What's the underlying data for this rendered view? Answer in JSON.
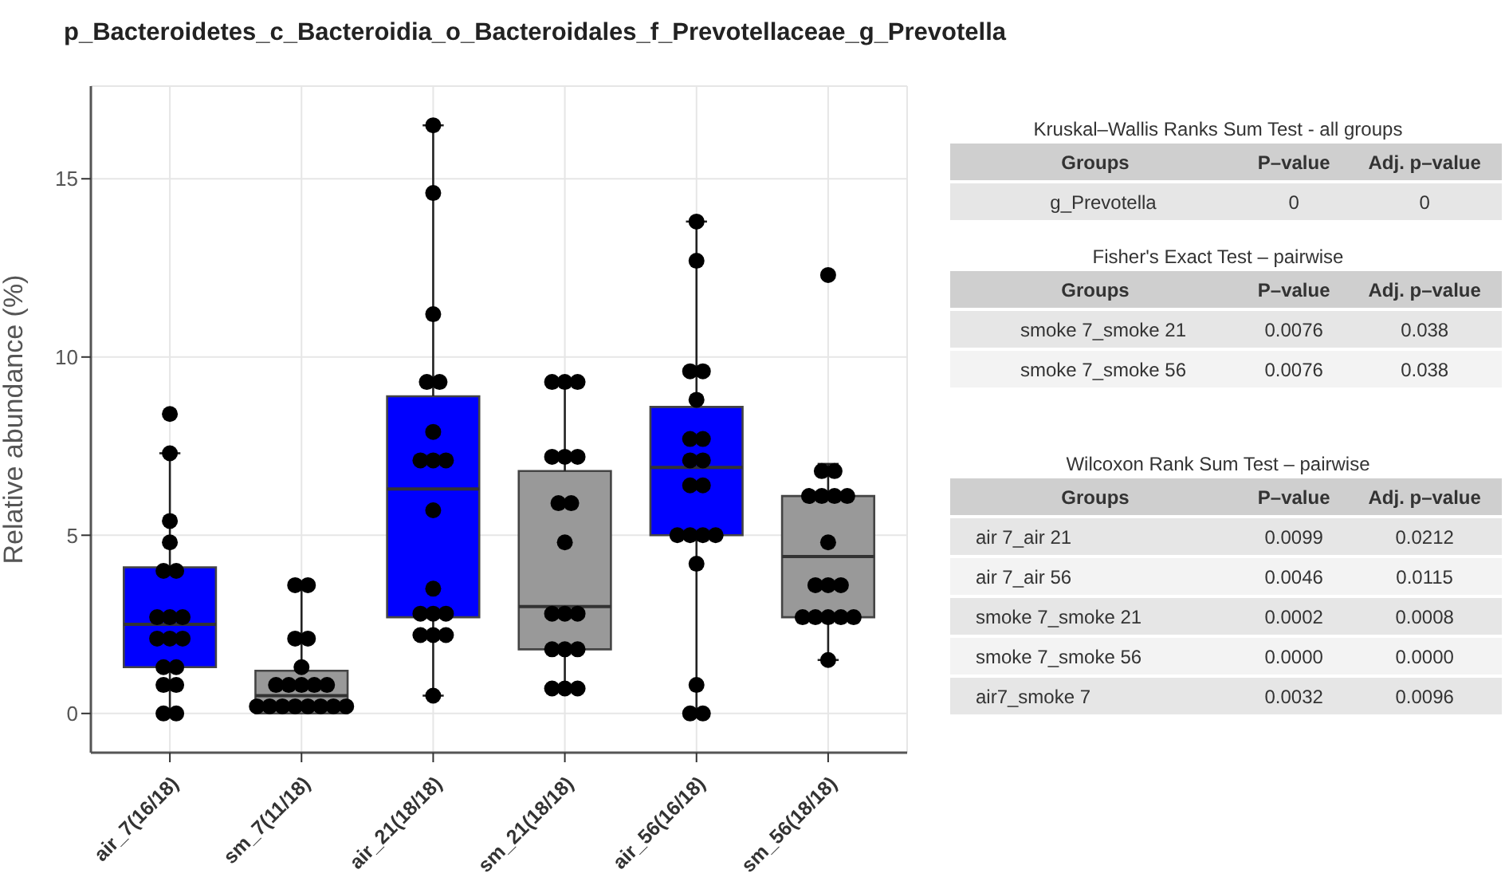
{
  "chart_data": [
    {
      "type": "box",
      "title": "p_Bacteroidetes_c_Bacteroidia_o_Bacteroidales_f_Prevotellaceae_g_Prevotella",
      "ylabel": "Relative abundance (%)",
      "categories": [
        "air_7(16/18)",
        "sm_7(11/18)",
        "air_21(18/18)",
        "sm_21(18/18)",
        "air_56(16/18)",
        "sm_56(18/18)"
      ],
      "colors": [
        "#0000ff",
        "#999999",
        "#0000ff",
        "#999999",
        "#0000ff",
        "#999999"
      ],
      "boxes": [
        {
          "low": 0,
          "q1": 1.3,
          "median": 2.5,
          "q3": 4.1,
          "high": 7.3
        },
        {
          "low": 0,
          "q1": 0,
          "median": 0.5,
          "q3": 1.2,
          "high": 3.6
        },
        {
          "low": 0.5,
          "q1": 2.7,
          "median": 6.3,
          "q3": 8.9,
          "high": 16.5
        },
        {
          "low": 0.7,
          "q1": 1.8,
          "median": 3.0,
          "q3": 6.8,
          "high": 9.3
        },
        {
          "low": 0,
          "q1": 5.0,
          "median": 6.9,
          "q3": 8.6,
          "high": 13.8
        },
        {
          "low": 1.5,
          "q1": 2.7,
          "median": 4.4,
          "q3": 6.1,
          "high": 7.0
        }
      ],
      "series": [
        {
          "type": "scatter",
          "color": "#000000",
          "x": [
            "air_7(16/18)",
            "air_7(16/18)",
            "air_7(16/18)",
            "air_7(16/18)",
            "air_7(16/18)",
            "air_7(16/18)",
            "air_7(16/18)",
            "air_7(16/18)",
            "air_7(16/18)",
            "air_7(16/18)",
            "air_7(16/18)",
            "air_7(16/18)",
            "air_7(16/18)",
            "air_7(16/18)",
            "air_7(16/18)",
            "air_7(16/18)",
            "air_7(16/18)",
            "air_7(16/18)",
            "sm_7(11/18)",
            "sm_7(11/18)",
            "sm_7(11/18)",
            "sm_7(11/18)",
            "sm_7(11/18)",
            "sm_7(11/18)",
            "sm_7(11/18)",
            "sm_7(11/18)",
            "sm_7(11/18)",
            "sm_7(11/18)",
            "sm_7(11/18)",
            "sm_7(11/18)",
            "sm_7(11/18)",
            "sm_7(11/18)",
            "sm_7(11/18)",
            "sm_7(11/18)",
            "sm_7(11/18)",
            "sm_7(11/18)",
            "air_21(18/18)",
            "air_21(18/18)",
            "air_21(18/18)",
            "air_21(18/18)",
            "air_21(18/18)",
            "air_21(18/18)",
            "air_21(18/18)",
            "air_21(18/18)",
            "air_21(18/18)",
            "air_21(18/18)",
            "air_21(18/18)",
            "air_21(18/18)",
            "air_21(18/18)",
            "air_21(18/18)",
            "air_21(18/18)",
            "air_21(18/18)",
            "air_21(18/18)",
            "air_21(18/18)",
            "sm_21(18/18)",
            "sm_21(18/18)",
            "sm_21(18/18)",
            "sm_21(18/18)",
            "sm_21(18/18)",
            "sm_21(18/18)",
            "sm_21(18/18)",
            "sm_21(18/18)",
            "sm_21(18/18)",
            "sm_21(18/18)",
            "sm_21(18/18)",
            "sm_21(18/18)",
            "sm_21(18/18)",
            "sm_21(18/18)",
            "sm_21(18/18)",
            "sm_21(18/18)",
            "sm_21(18/18)",
            "sm_21(18/18)",
            "air_56(16/18)",
            "air_56(16/18)",
            "air_56(16/18)",
            "air_56(16/18)",
            "air_56(16/18)",
            "air_56(16/18)",
            "air_56(16/18)",
            "air_56(16/18)",
            "air_56(16/18)",
            "air_56(16/18)",
            "air_56(16/18)",
            "air_56(16/18)",
            "air_56(16/18)",
            "air_56(16/18)",
            "air_56(16/18)",
            "air_56(16/18)",
            "air_56(16/18)",
            "air_56(16/18)",
            "air_56(16/18)",
            "sm_56(18/18)",
            "sm_56(18/18)",
            "sm_56(18/18)",
            "sm_56(18/18)",
            "sm_56(18/18)",
            "sm_56(18/18)",
            "sm_56(18/18)",
            "sm_56(18/18)",
            "sm_56(18/18)",
            "sm_56(18/18)",
            "sm_56(18/18)",
            "sm_56(18/18)",
            "sm_56(18/18)",
            "sm_56(18/18)",
            "sm_56(18/18)",
            "sm_56(18/18)",
            "sm_56(18/18)"
          ],
          "values": [
            8.4,
            7.3,
            5.4,
            4.8,
            4.0,
            4.0,
            2.7,
            2.7,
            2.7,
            2.1,
            2.1,
            2.1,
            1.3,
            1.3,
            0.8,
            0.8,
            0,
            0,
            3.6,
            3.6,
            2.1,
            2.1,
            1.3,
            0.8,
            0.8,
            0.8,
            0.8,
            0.8,
            0.2,
            0.2,
            0.2,
            0.2,
            0.2,
            0.2,
            0.2,
            0.2,
            16.5,
            14.6,
            11.2,
            9.3,
            9.3,
            7.9,
            7.1,
            7.1,
            7.1,
            5.7,
            3.5,
            2.8,
            2.8,
            2.8,
            2.2,
            2.2,
            2.2,
            0.5,
            9.3,
            9.3,
            9.3,
            7.2,
            7.2,
            7.2,
            5.9,
            5.9,
            4.8,
            2.8,
            2.8,
            2.8,
            1.8,
            1.8,
            1.8,
            0.7,
            0.7,
            0.7,
            13.8,
            12.7,
            9.6,
            9.6,
            8.8,
            7.7,
            7.7,
            7.1,
            7.1,
            6.4,
            6.4,
            5.0,
            5.0,
            5.0,
            5.0,
            4.2,
            0.8,
            0,
            0,
            12.3,
            6.8,
            6.8,
            6.1,
            6.1,
            6.1,
            6.1,
            4.8,
            3.6,
            3.6,
            3.6,
            2.7,
            2.7,
            2.7,
            2.7,
            2.7,
            1.5
          ]
        }
      ],
      "ylim": [
        -1.1,
        17.6
      ],
      "yticks": [
        0,
        5,
        10,
        15
      ],
      "grid": true,
      "marker": "circle",
      "legend": false
    },
    {
      "type": "other",
      "title": "Kruskal–Wallis Ranks Sum Test  - all groups",
      "ylabel": "Groups",
      "categories": [
        "P–value",
        "Adj. p–value"
      ],
      "y_categories": [
        "g_Prevotella"
      ],
      "cell_labels": [
        [
          "0",
          "0"
        ]
      ]
    },
    {
      "type": "other",
      "title": "Fisher's Exact Test – pairwise",
      "ylabel": "Groups",
      "categories": [
        "P–value",
        "Adj. p–value"
      ],
      "y_categories": [
        "smoke 7_smoke 21",
        "smoke 7_smoke 56"
      ],
      "cell_labels": [
        [
          "0.0076",
          "0.038"
        ],
        [
          "0.0076",
          "0.038"
        ]
      ]
    },
    {
      "type": "other",
      "title": "Wilcoxon Rank Sum Test – pairwise",
      "ylabel": "Groups",
      "categories": [
        "P–value",
        "Adj. p–value"
      ],
      "y_categories": [
        "air 7_air 21",
        "air 7_air 56",
        "smoke 7_smoke 21",
        "smoke 7_smoke 56",
        "air7_smoke 7"
      ],
      "cell_labels": [
        [
          "0.0099",
          "0.0212"
        ],
        [
          "0.0046",
          "0.0115"
        ],
        [
          "0.0002",
          "0.0008"
        ],
        [
          "0.0000",
          "0.0000"
        ],
        [
          "0.0032",
          "0.0096"
        ]
      ]
    }
  ]
}
